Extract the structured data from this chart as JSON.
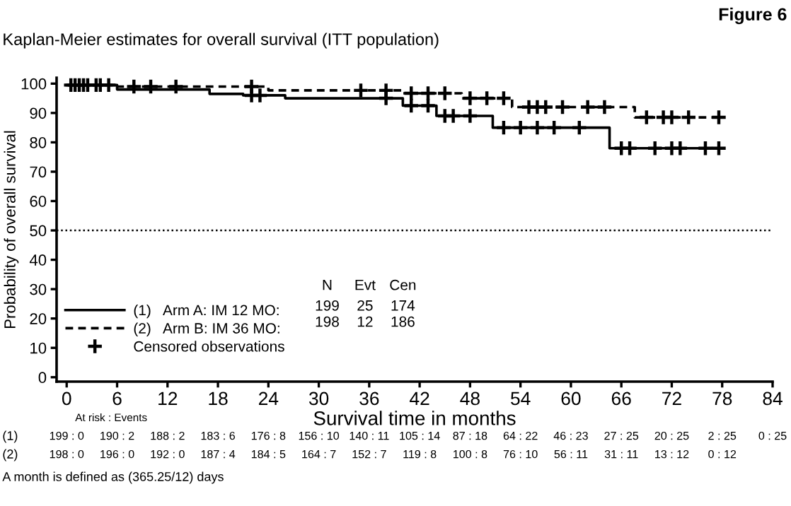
{
  "chart_data": {
    "type": "step",
    "title": "Figure 6",
    "subtitle": "Kaplan-Meier estimates for overall survival (ITT population)",
    "xlabel": "Survival time in months",
    "ylabel": "Probability of overall survival",
    "xlim": [
      -1.2,
      84
    ],
    "ylim": [
      -1.5,
      102
    ],
    "xticks": [
      0,
      6,
      12,
      18,
      24,
      30,
      36,
      42,
      48,
      54,
      60,
      66,
      72,
      78,
      84
    ],
    "yticks": [
      0,
      10,
      20,
      30,
      40,
      50,
      60,
      70,
      80,
      90,
      100
    ],
    "grid": false,
    "legend": "bottom left",
    "series": [
      {
        "name": "(1)   Arm A: IM 12 MO:",
        "color": "#000000",
        "line_style": "solid",
        "marker": "none",
        "x": [
          0,
          6,
          17,
          21,
          26,
          40,
          44,
          50.7,
          64.6,
          77.6
        ],
        "values": [
          99.5,
          98,
          96.5,
          96,
          95,
          92.5,
          89,
          85,
          78,
          78
        ]
      },
      {
        "name": "(2)   Arm B: IM 36 MO:",
        "color": "#000000",
        "line_style": "dashed",
        "marker": "none",
        "x": [
          0,
          6,
          24,
          40,
          47,
          53,
          67.6,
          77.6
        ],
        "values": [
          99.5,
          99,
          97.7,
          96.7,
          95,
          92,
          88.5,
          88.5
        ]
      },
      {
        "name": "Censored observations",
        "type": "scatter",
        "color": "#000000",
        "marker": "cross",
        "x": [
          1,
          2,
          3.5,
          5,
          22,
          23,
          38,
          41,
          43,
          45,
          46,
          48,
          52,
          54,
          56,
          58,
          61,
          66,
          67,
          70,
          72,
          73,
          76,
          77.6
        ],
        "values": [
          99.5,
          99.5,
          99.5,
          99.5,
          96,
          96,
          95,
          92.5,
          92.5,
          89,
          89,
          89,
          85,
          85,
          85,
          85,
          85,
          78,
          78,
          78,
          78,
          78,
          78,
          78
        ]
      },
      {
        "type": "scatter",
        "color": "#000000",
        "marker": "cross",
        "x": [
          0.5,
          1.5,
          2.5,
          4,
          8,
          10,
          13,
          22,
          35,
          38,
          41,
          43,
          45,
          48,
          50,
          52,
          55,
          56,
          57,
          59,
          62,
          64,
          69,
          71,
          72,
          74,
          77.6
        ],
        "values": [
          99.5,
          99.5,
          99.5,
          99.5,
          99,
          99,
          99,
          99,
          97.7,
          97.7,
          96.7,
          96.7,
          96.7,
          95,
          95,
          95,
          92,
          92,
          92,
          92,
          92,
          92,
          88.5,
          88.5,
          88.5,
          88.5,
          88.5
        ]
      }
    ],
    "ref_lines": [
      {
        "axis": "y",
        "value": 50,
        "color": "#000000",
        "line_style": "dotted"
      }
    ],
    "annotations": [
      "N",
      "Evt",
      "Cen",
      "199",
      "25",
      "174",
      "198",
      "12",
      "186",
      "At risk : Events",
      "(1)",
      "199 : 0",
      "190 : 2",
      "188 : 2",
      "183 : 6",
      "176 : 8",
      "156 : 10",
      "140 : 11",
      "105 : 14",
      "87 : 18",
      "64 : 22",
      "46 : 23",
      "27 : 25",
      "20 : 25",
      "2 : 25",
      "0 : 25",
      "(2)",
      "198 : 0",
      "196 : 0",
      "192 : 0",
      "187 : 4",
      "184 : 5",
      "164 : 7",
      "152 : 7",
      "119 : 8",
      "100 : 8",
      "76 : 10",
      "56 : 11",
      "31 : 11",
      "13 : 12",
      "0 : 12",
      "A month is defined as (365.25/12) days"
    ]
  }
}
